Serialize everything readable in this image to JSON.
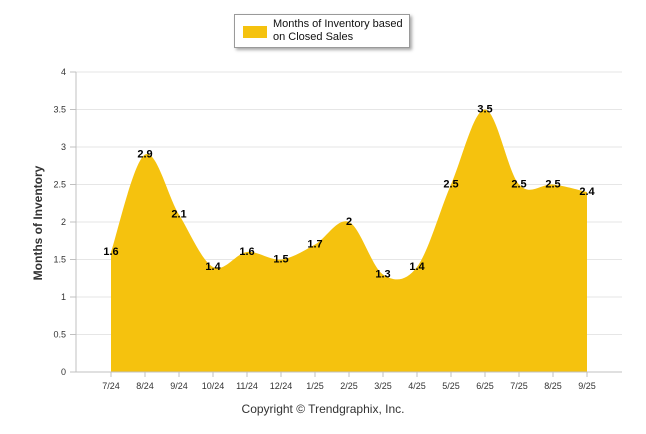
{
  "colors": {
    "fill": "#f5c20e",
    "grid": "#e6e6e6",
    "axis": "#c0c0c0",
    "text": "#333333"
  },
  "legend": {
    "label": "Months of Inventory based on Closed Sales"
  },
  "copyright": "Copyright © Trendgraphix, Inc.",
  "chart_data": {
    "type": "area",
    "title": "",
    "xlabel": "",
    "ylabel": "Months of Inventory",
    "ylim": [
      0,
      4
    ],
    "yticks": [
      "0",
      "0.5",
      "1",
      "1.5",
      "2",
      "2.5",
      "3",
      "3.5",
      "4"
    ],
    "grid": true,
    "legend_position": "top",
    "categories": [
      "7/24",
      "8/24",
      "9/24",
      "10/24",
      "11/24",
      "12/24",
      "1/25",
      "2/25",
      "3/25",
      "4/25",
      "5/25",
      "6/25",
      "7/25",
      "8/25",
      "9/25"
    ],
    "series": [
      {
        "name": "Months of Inventory based on Closed Sales",
        "values": [
          1.6,
          2.9,
          2.1,
          1.4,
          1.6,
          1.5,
          1.7,
          2,
          1.3,
          1.4,
          2.5,
          3.5,
          2.5,
          2.5,
          2.4
        ],
        "labels": [
          "1.6",
          "2.9",
          "2.1",
          "1.4",
          "1.6",
          "1.5",
          "1.7",
          "2",
          "1.3",
          "1.4",
          "2.5",
          "3.5",
          "2.5",
          "2.5",
          "2.4"
        ]
      }
    ]
  }
}
